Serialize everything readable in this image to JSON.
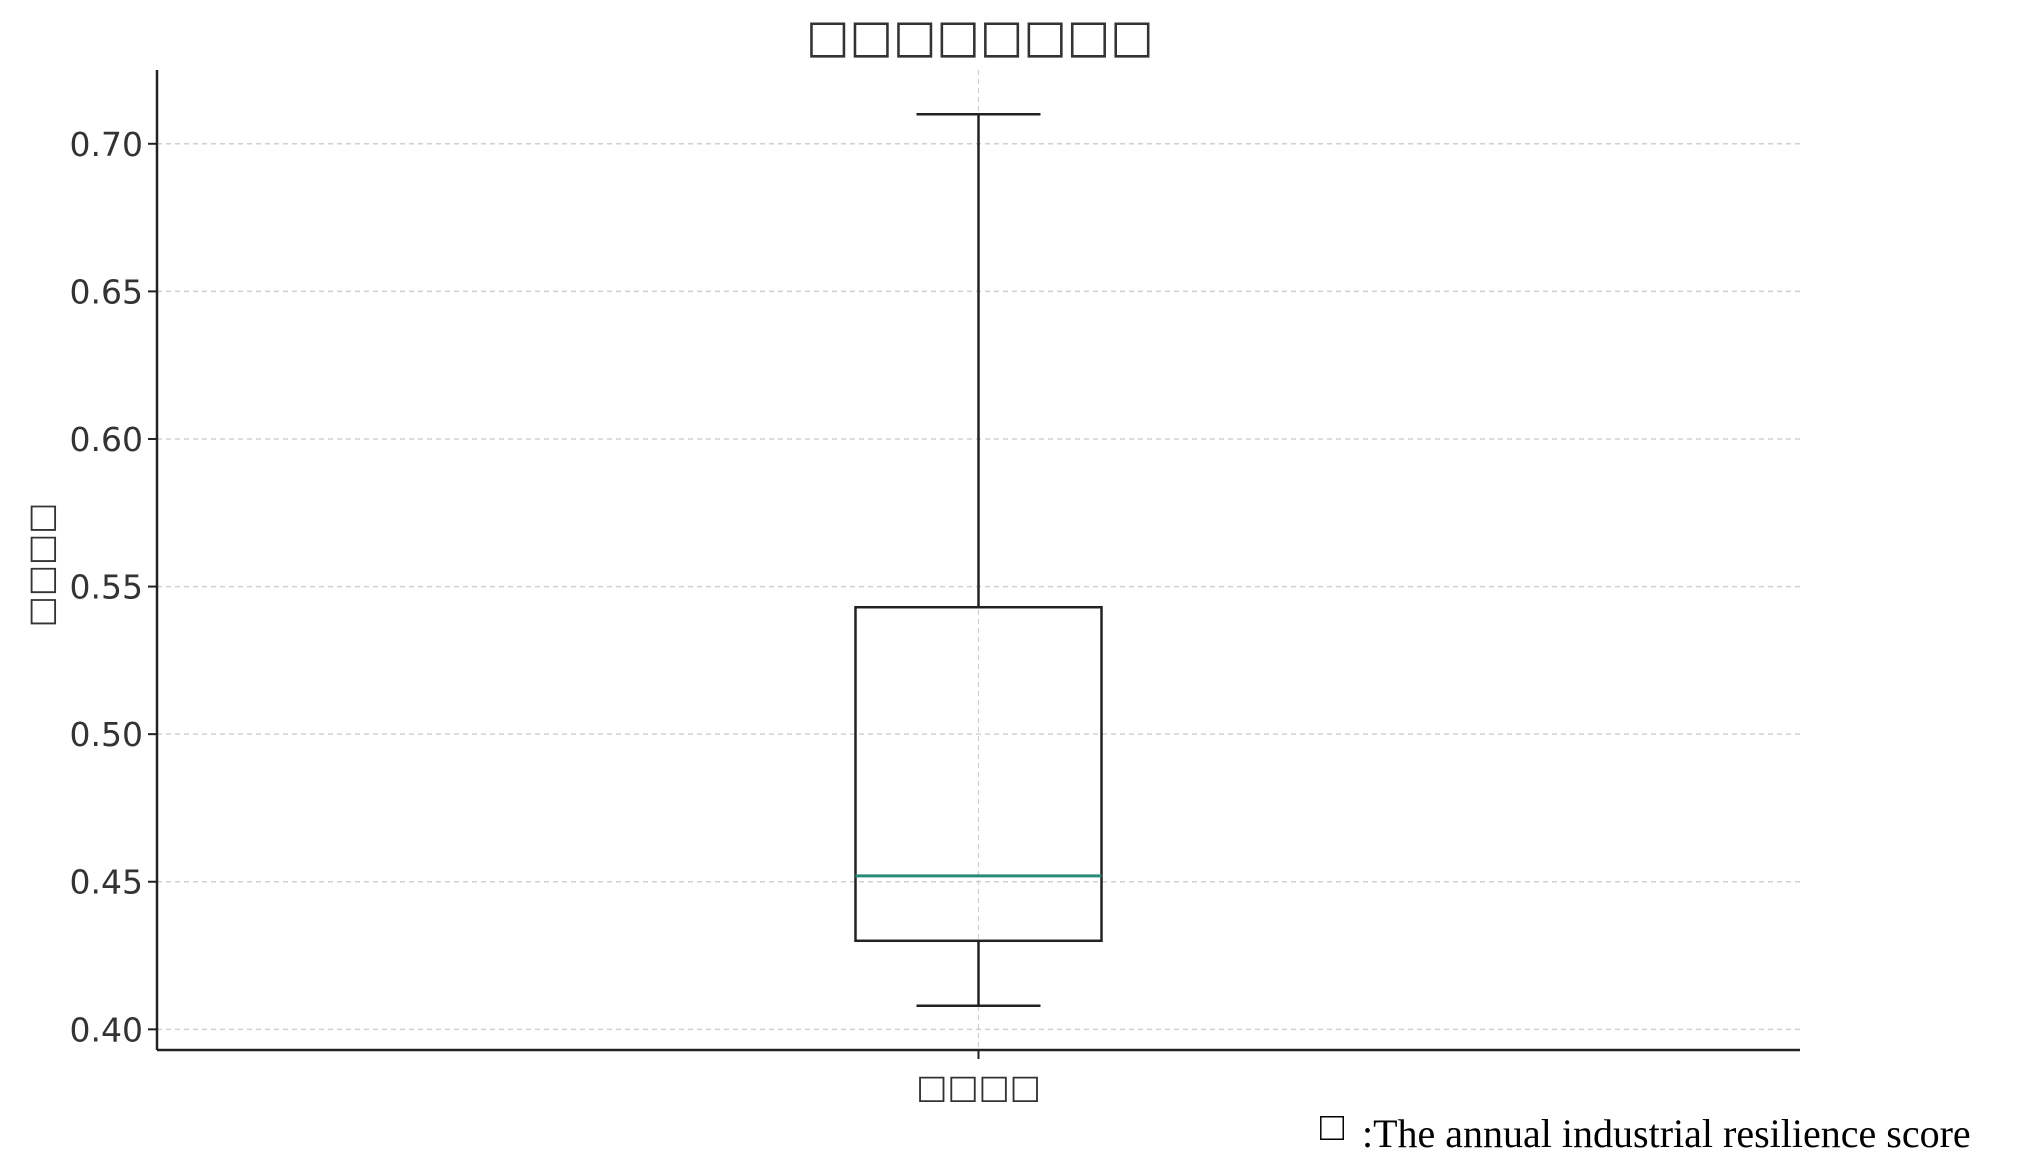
{
  "chart_data": {
    "type": "box",
    "title": "□□□□□□□□",
    "ylabel": "□□□□",
    "categories": [
      "□□□□"
    ],
    "boxes": [
      {
        "category": "□□□□",
        "whisker_low": 0.408,
        "q1": 0.43,
        "median": 0.452,
        "q3": 0.543,
        "whisker_high": 0.71
      }
    ],
    "yticks": [
      0.4,
      0.45,
      0.5,
      0.55,
      0.6,
      0.65,
      0.7
    ],
    "ytick_labels": [
      "0.40",
      "0.45",
      "0.50",
      "0.55",
      "0.60",
      "0.65",
      "0.70"
    ],
    "ylim": [
      0.393,
      0.725
    ],
    "grid": true,
    "colors": {
      "box": "#222222",
      "median": "#2a8a7a",
      "grid": "#d0d0d0",
      "axis": "#222222"
    }
  },
  "note": {
    "icon": "□",
    "text": ":The annual industrial resilience score"
  }
}
